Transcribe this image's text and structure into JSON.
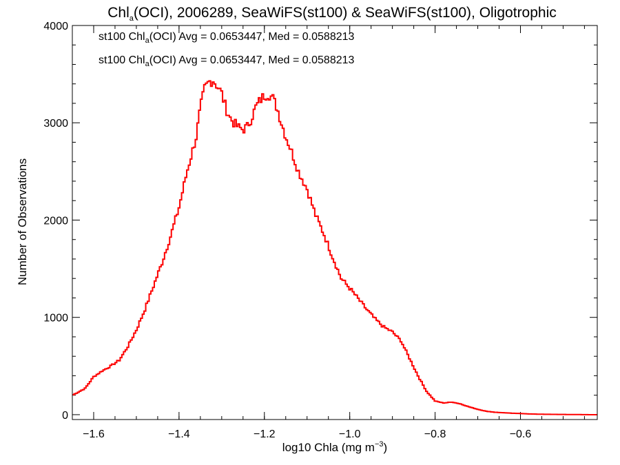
{
  "colors": {
    "background": "#ffffff",
    "axes": "#000000",
    "series1": "#000000",
    "series2": "#ff0000"
  },
  "chart_data": {
    "type": "line",
    "title": {
      "pre": "Chl",
      "sub": "a",
      "post": "(OCI), 2006289, SeaWiFS(st100) & SeaWiFS(st100), Oligotrophic"
    },
    "xlabel": {
      "pre": "log10 Chla (mg m",
      "sup": "−3",
      "post": ")"
    },
    "ylabel": "Number of Observations",
    "xlim": [
      -1.65,
      -0.42
    ],
    "ylim": [
      -50,
      4000
    ],
    "xticks": [
      -1.6,
      -1.4,
      -1.2,
      -1.0,
      -0.8,
      -0.6
    ],
    "xtick_labels": [
      "−1.6",
      "−1.4",
      "−1.2",
      "−1.0",
      "−0.8",
      "−0.6"
    ],
    "yticks": [
      0,
      1000,
      2000,
      3000,
      4000
    ],
    "ytick_labels": [
      "0",
      "1000",
      "2000",
      "3000",
      "4000"
    ],
    "grid": false,
    "annotations": [
      {
        "pre": "st100 Chl",
        "sub": "a",
        "post": "(OCI) Avg = 0.0653447, Med = 0.0588213",
        "color": "#000000"
      },
      {
        "pre": "st100 Chl",
        "sub": "a",
        "post": "(OCI) Avg = 0.0653447, Med = 0.0588213",
        "color": "#ff0000"
      }
    ],
    "series": [
      {
        "color": "#000000"
      },
      {
        "color": "#ff0000"
      }
    ],
    "x": [
      -1.65,
      -1.62,
      -1.6,
      -1.58,
      -1.56,
      -1.54,
      -1.52,
      -1.5,
      -1.48,
      -1.46,
      -1.44,
      -1.42,
      -1.4,
      -1.38,
      -1.36,
      -1.35,
      -1.34,
      -1.33,
      -1.32,
      -1.31,
      -1.3,
      -1.29,
      -1.28,
      -1.27,
      -1.26,
      -1.25,
      -1.24,
      -1.23,
      -1.22,
      -1.21,
      -1.2,
      -1.19,
      -1.18,
      -1.17,
      -1.16,
      -1.15,
      -1.14,
      -1.12,
      -1.1,
      -1.08,
      -1.06,
      -1.04,
      -1.02,
      -1.0,
      -0.98,
      -0.96,
      -0.94,
      -0.92,
      -0.9,
      -0.88,
      -0.86,
      -0.84,
      -0.82,
      -0.8,
      -0.78,
      -0.76,
      -0.74,
      -0.72,
      -0.7,
      -0.68,
      -0.66,
      -0.64,
      -0.62,
      -0.6,
      -0.58,
      -0.56,
      -0.54,
      -0.52,
      -0.5,
      -0.48,
      -0.46,
      -0.44,
      -0.42
    ],
    "y": [
      200,
      270,
      390,
      450,
      500,
      560,
      700,
      870,
      1080,
      1320,
      1560,
      1830,
      2130,
      2520,
      2850,
      3150,
      3350,
      3420,
      3440,
      3380,
      3300,
      3150,
      3050,
      2990,
      2950,
      2930,
      2960,
      3050,
      3160,
      3230,
      3280,
      3300,
      3250,
      3150,
      3000,
      2860,
      2750,
      2500,
      2320,
      2050,
      1850,
      1620,
      1400,
      1300,
      1190,
      1080,
      980,
      900,
      850,
      760,
      580,
      400,
      240,
      140,
      120,
      130,
      110,
      80,
      55,
      35,
      25,
      20,
      15,
      12,
      8,
      5,
      4,
      3,
      2,
      1,
      1,
      0,
      0
    ]
  }
}
